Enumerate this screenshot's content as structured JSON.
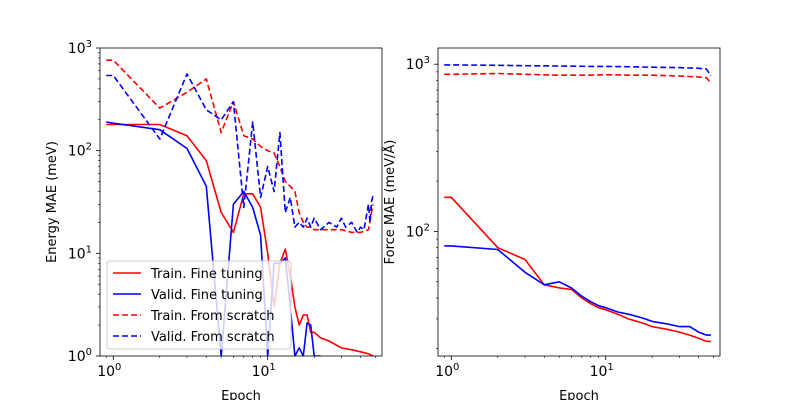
{
  "chart_data": [
    {
      "type": "line",
      "xscale": "log",
      "yscale": "log",
      "xlabel": "Epoch",
      "ylabel": "Energy MAE (meV)",
      "xlim": [
        0.82,
        55
      ],
      "ylim": [
        1,
        1000
      ],
      "xticks": [
        {
          "base": "10",
          "exp": "0",
          "value": 1
        },
        {
          "base": "10",
          "exp": "1",
          "value": 10
        }
      ],
      "yticks": [
        {
          "base": "10",
          "exp": "0",
          "value": 1
        },
        {
          "base": "10",
          "exp": "1",
          "value": 10
        },
        {
          "base": "10",
          "exp": "2",
          "value": 100
        },
        {
          "base": "10",
          "exp": "3",
          "value": 1000
        }
      ],
      "legend": {
        "placement": "lower-left"
      },
      "series": [
        {
          "name": "Train. Fine tuning",
          "color": "#ff0000",
          "dash": "solid",
          "x": [
            0.9,
            1,
            2,
            3,
            4,
            5,
            6,
            7,
            8,
            9,
            10,
            11,
            12,
            13,
            14,
            15,
            16,
            17,
            18,
            19,
            20,
            22,
            25,
            30,
            35,
            40,
            45,
            48
          ],
          "y": [
            180,
            180,
            180,
            140,
            80,
            25,
            16,
            38,
            38,
            28,
            10,
            3,
            8,
            11,
            6,
            3,
            2,
            2.5,
            2.5,
            1.7,
            1.7,
            1.5,
            1.4,
            1.2,
            1.15,
            1.1,
            1.05,
            1.0
          ]
        },
        {
          "name": "Valid. Fine tuning",
          "color": "#0000ff",
          "dash": "solid",
          "x": [
            0.9,
            1,
            2,
            3,
            4,
            5,
            6,
            7,
            8,
            9,
            10,
            11,
            12,
            13,
            14,
            15,
            16,
            17,
            18,
            19,
            20,
            21,
            22
          ],
          "y": [
            190,
            185,
            160,
            105,
            45,
            1.0,
            30,
            40,
            28,
            15,
            1.0,
            8,
            8,
            9,
            3,
            1.0,
            1.2,
            1.0,
            2.1,
            2.0,
            1.0,
            1.0,
            1.0
          ]
        },
        {
          "name": "Train. From scratch",
          "color": "#ff0000",
          "dash": "dashed",
          "x": [
            0.9,
            1,
            2,
            3,
            4,
            5,
            6,
            7,
            8,
            9,
            10,
            11,
            12,
            13,
            14,
            15,
            16,
            17,
            18,
            19,
            20,
            22,
            25,
            30,
            35,
            40,
            45,
            48
          ],
          "y": [
            760,
            760,
            260,
            370,
            500,
            150,
            300,
            140,
            130,
            110,
            100,
            95,
            70,
            50,
            45,
            40,
            25,
            20,
            18,
            18,
            17,
            17,
            17,
            17,
            16,
            16,
            17,
            30
          ]
        },
        {
          "name": "Valid. From scratch",
          "color": "#0000ff",
          "dash": "dashed",
          "x": [
            0.9,
            1,
            2,
            3,
            4,
            5,
            6,
            7,
            8,
            9,
            10,
            11,
            12,
            13,
            14,
            15,
            16,
            17,
            18,
            19,
            20,
            22,
            25,
            28,
            30,
            32,
            35,
            38,
            40,
            42,
            45,
            46,
            47,
            48
          ],
          "y": [
            540,
            540,
            130,
            560,
            250,
            200,
            300,
            28,
            190,
            35,
            70,
            40,
            150,
            25,
            35,
            18,
            20,
            18,
            22,
            18,
            22,
            17,
            20,
            18,
            22,
            18,
            20,
            16,
            18,
            17,
            30,
            20,
            32,
            36
          ]
        }
      ]
    },
    {
      "type": "line",
      "xscale": "log",
      "yscale": "log",
      "xlabel": "Epoch",
      "ylabel": "Force MAE (meV/Å)",
      "xlim": [
        0.82,
        55
      ],
      "ylim": [
        18,
        1250
      ],
      "xticks": [
        {
          "base": "10",
          "exp": "0",
          "value": 1
        },
        {
          "base": "10",
          "exp": "1",
          "value": 10
        }
      ],
      "yticks": [
        {
          "base": "10",
          "exp": "2",
          "value": 100
        },
        {
          "base": "10",
          "exp": "3",
          "value": 1000
        }
      ],
      "series": [
        {
          "name": "Train. Fine tuning",
          "color": "#ff0000",
          "dash": "solid",
          "x": [
            0.9,
            1,
            2,
            3,
            4,
            5,
            6,
            7,
            8,
            9,
            10,
            12,
            14,
            16,
            18,
            20,
            25,
            30,
            35,
            40,
            45,
            48
          ],
          "y": [
            160,
            160,
            80,
            68,
            48,
            46,
            45,
            40,
            37,
            35,
            34,
            32,
            30,
            29,
            28,
            27,
            26,
            25,
            24,
            23,
            22,
            22
          ]
        },
        {
          "name": "Valid. Fine tuning",
          "color": "#0000ff",
          "dash": "solid",
          "x": [
            0.9,
            1,
            2,
            3,
            4,
            5,
            6,
            7,
            8,
            9,
            10,
            12,
            14,
            16,
            18,
            20,
            25,
            30,
            35,
            40,
            45,
            48
          ],
          "y": [
            82,
            82,
            78,
            57,
            48,
            50,
            46,
            41,
            38,
            36,
            35,
            33,
            32,
            31,
            30,
            29,
            28,
            27,
            27,
            25,
            24,
            24
          ]
        },
        {
          "name": "Train. From scratch",
          "color": "#ff0000",
          "dash": "dashed",
          "x": [
            0.9,
            1,
            2,
            3,
            5,
            8,
            10,
            15,
            20,
            30,
            40,
            45,
            48
          ],
          "y": [
            870,
            870,
            880,
            870,
            860,
            860,
            865,
            860,
            860,
            850,
            840,
            830,
            770
          ]
        },
        {
          "name": "Valid. From scratch",
          "color": "#0000ff",
          "dash": "dashed",
          "x": [
            0.9,
            1,
            2,
            3,
            5,
            8,
            10,
            15,
            20,
            30,
            40,
            45,
            48
          ],
          "y": [
            990,
            990,
            985,
            980,
            975,
            970,
            970,
            965,
            960,
            955,
            945,
            935,
            850
          ]
        }
      ]
    }
  ]
}
